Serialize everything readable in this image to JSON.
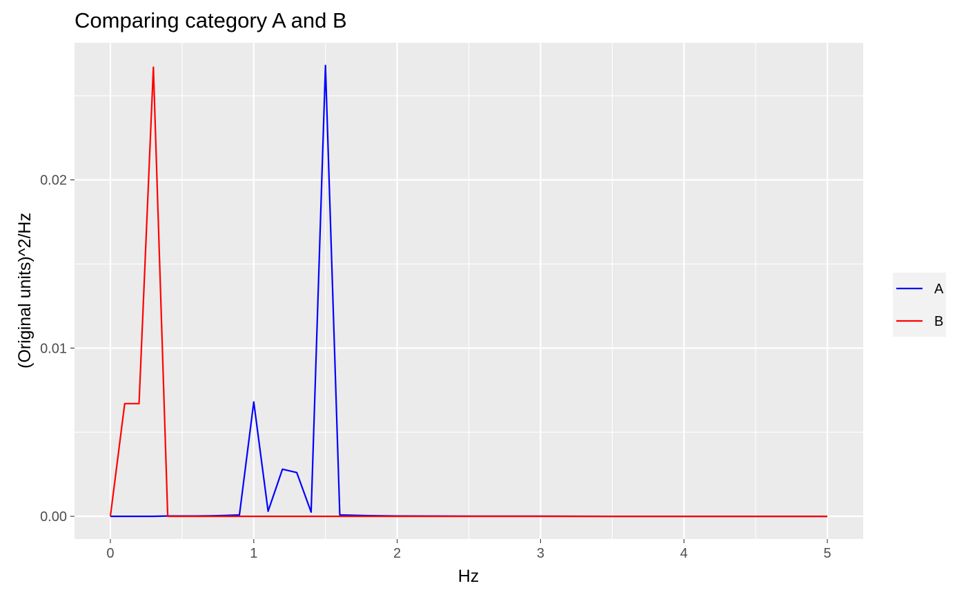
{
  "chart_data": {
    "type": "line",
    "title": "Comparing category A and B",
    "xlabel": "Hz",
    "ylabel": "(Original units)^2/Hz",
    "xlim": [
      -0.25,
      5.25
    ],
    "ylim": [
      -0.00135,
      0.02815
    ],
    "x_ticks": [
      0,
      1,
      2,
      3,
      4,
      5
    ],
    "x_tick_labels": [
      "0",
      "1",
      "2",
      "3",
      "4",
      "5"
    ],
    "y_ticks": [
      0,
      0.01,
      0.02
    ],
    "y_tick_labels": [
      "0.00",
      "0.01",
      "0.02"
    ],
    "grid": true,
    "legend_position": "right",
    "background": "#ebebeb",
    "series": [
      {
        "name": "A",
        "color": "#0000ff",
        "x": [
          0,
          0.1,
          0.2,
          0.3,
          0.4,
          0.5,
          0.6,
          0.7,
          0.8,
          0.9,
          1.0,
          1.1,
          1.2,
          1.3,
          1.4,
          1.5,
          1.6,
          1.8,
          2.0,
          2.5,
          3.0,
          3.5,
          4.0,
          4.5,
          5.0
        ],
        "values": [
          0,
          0,
          0,
          0,
          2e-05,
          2e-05,
          2e-05,
          3e-05,
          5e-05,
          8e-05,
          0.0068,
          0.0003,
          0.0028,
          0.0026,
          0.00025,
          0.0268,
          8e-05,
          4e-05,
          2e-05,
          1e-05,
          1e-05,
          0.0,
          0.0,
          0.0,
          0.0
        ]
      },
      {
        "name": "B",
        "color": "#ff0000",
        "x": [
          0,
          0.1,
          0.2,
          0.3,
          0.4,
          0.5,
          1.0,
          1.5,
          2.0,
          2.5,
          3.0,
          3.5,
          4.0,
          4.5,
          5.0
        ],
        "values": [
          0,
          0.0067,
          0.0067,
          0.0267,
          0,
          0,
          0,
          0,
          0,
          0,
          0,
          0,
          0,
          0,
          0
        ]
      }
    ]
  }
}
